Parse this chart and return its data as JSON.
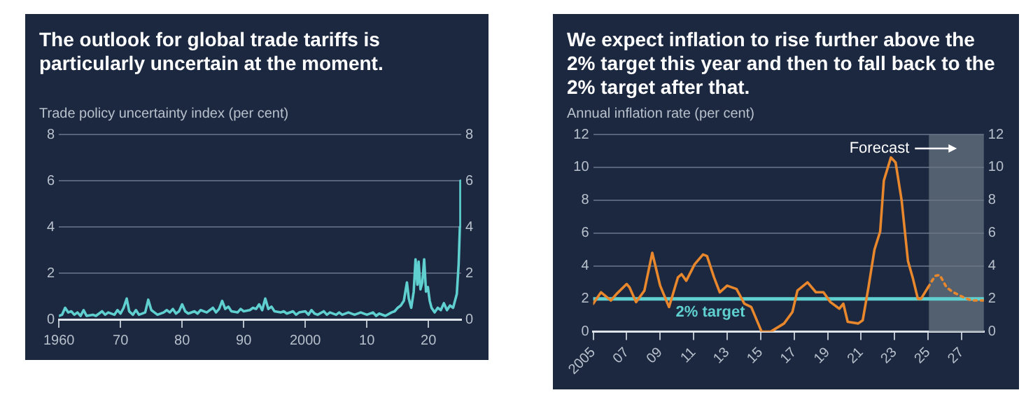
{
  "chart_data": [
    {
      "type": "line",
      "title": "The outlook for global trade tariffs is particularly uncertain at the moment.",
      "ylabel": "Trade policy uncertainty index (per cent)",
      "series": [
        {
          "color": "#5fd0cf",
          "x": [
            1960,
            1960.5,
            1961,
            1961.5,
            1962,
            1962.5,
            1963,
            1963.5,
            1964,
            1964.5,
            1965.5,
            1966,
            1967,
            1967.5,
            1968,
            1969,
            1969.5,
            1970,
            1970.5,
            1971,
            1971.4,
            1972,
            1972.5,
            1973,
            1974,
            1974.5,
            1975,
            1975.5,
            1976,
            1977,
            1977.5,
            1978,
            1978.5,
            1979,
            1979.5,
            1980,
            1980.5,
            1981,
            1982,
            1982.5,
            1983,
            1984,
            1985,
            1985.5,
            1986,
            1986.5,
            1987,
            1987.5,
            1988,
            1989,
            1989.5,
            1990,
            1991,
            1991.5,
            1992,
            1992.5,
            1993,
            1993.5,
            1994,
            1994.5,
            1995,
            1996,
            1996.5,
            1997,
            1998,
            1998.5,
            1999,
            2000,
            2000.5,
            2001,
            2001.5,
            2002,
            2003,
            2003.5,
            2004,
            2005,
            2005.5,
            2006,
            2007,
            2008,
            2009,
            2010,
            2011,
            2011.5,
            2012,
            2013,
            2014,
            2014.5,
            2015,
            2015.5,
            2016,
            2016.5,
            2016.8,
            2017.2,
            2017.6,
            2017.9,
            2018.2,
            2018.4,
            2018.7,
            2019,
            2019.3,
            2019.6,
            2019.9,
            2020.2,
            2020.5,
            2021,
            2021.5,
            2022,
            2022.5,
            2023,
            2023.5,
            2024,
            2024.3,
            2024.6,
            2024.9,
            2025.1,
            2025.2
          ],
          "values": [
            0.15,
            0.2,
            0.5,
            0.3,
            0.35,
            0.2,
            0.3,
            0.15,
            0.4,
            0.15,
            0.2,
            0.15,
            0.35,
            0.2,
            0.3,
            0.2,
            0.4,
            0.25,
            0.5,
            0.9,
            0.35,
            0.2,
            0.4,
            0.2,
            0.3,
            0.85,
            0.4,
            0.3,
            0.2,
            0.3,
            0.4,
            0.3,
            0.45,
            0.25,
            0.35,
            0.65,
            0.35,
            0.25,
            0.35,
            0.25,
            0.4,
            0.3,
            0.5,
            0.3,
            0.45,
            0.8,
            0.45,
            0.55,
            0.35,
            0.3,
            0.45,
            0.35,
            0.4,
            0.5,
            0.45,
            0.65,
            0.4,
            0.9,
            0.45,
            0.55,
            0.35,
            0.3,
            0.35,
            0.25,
            0.35,
            0.2,
            0.3,
            0.35,
            0.2,
            0.4,
            0.25,
            0.2,
            0.35,
            0.2,
            0.3,
            0.2,
            0.3,
            0.2,
            0.3,
            0.2,
            0.3,
            0.2,
            0.3,
            0.15,
            0.25,
            0.15,
            0.3,
            0.35,
            0.5,
            0.6,
            0.8,
            1.6,
            0.9,
            0.5,
            1.2,
            2.6,
            1.5,
            2.5,
            1.3,
            1.6,
            2.6,
            1.2,
            1.4,
            0.8,
            0.5,
            0.3,
            0.5,
            0.4,
            0.7,
            0.4,
            0.6,
            0.5,
            0.8,
            1.1,
            2.4,
            4,
            6.0
          ]
        }
      ],
      "xlim": [
        1960,
        2025.3
      ],
      "xticks": [
        {
          "value": 1960,
          "label": "1960"
        },
        {
          "value": 1970,
          "label": "70"
        },
        {
          "value": 1980,
          "label": "80"
        },
        {
          "value": 1990,
          "label": "90"
        },
        {
          "value": 2000,
          "label": "2000"
        },
        {
          "value": 2010,
          "label": "10"
        },
        {
          "value": 2020,
          "label": "20"
        }
      ],
      "ylim": [
        0,
        8
      ],
      "yticks": [
        0,
        2,
        4,
        6,
        8
      ],
      "y2lim": [
        0,
        8
      ],
      "y2ticks": [
        0,
        2,
        4,
        6,
        8
      ],
      "grid": "y"
    },
    {
      "type": "line",
      "title": "We expect inflation to rise further above the 2% target this year and then to fall back to the 2% target after that.",
      "ylabel": "Annual inflation rate (per cent)",
      "series": [
        {
          "color": "#e8872c",
          "line_style": "solid",
          "x": [
            2005.0,
            2005.47,
            2006.06,
            2006.4,
            2007.0,
            2007.17,
            2007.56,
            2008.06,
            2008.53,
            2009.0,
            2009.53,
            2010.06,
            2010.28,
            2010.56,
            2011.06,
            2011.56,
            2011.8,
            2012.22,
            2012.56,
            2013.0,
            2013.56,
            2014.03,
            2014.44,
            2015.06,
            2015.6,
            2016.4,
            2016.9,
            2017.2,
            2017.8,
            2018.3,
            2018.75,
            2019.17,
            2019.7,
            2019.94,
            2020.2,
            2020.83,
            2021.1,
            2021.44,
            2021.8,
            2022.14,
            2022.36,
            2022.78,
            2023.06,
            2023.42,
            2023.8,
            2024.08,
            2024.39,
            2024.58,
            2025.0
          ],
          "values": [
            1.7,
            2.4,
            1.9,
            2.3,
            2.9,
            2.7,
            1.8,
            2.5,
            4.8,
            2.8,
            1.5,
            3.3,
            3.5,
            3.1,
            4.1,
            4.7,
            4.6,
            3.3,
            2.4,
            2.8,
            2.6,
            1.7,
            1.5,
            0,
            0,
            0.5,
            1.2,
            2.5,
            3.0,
            2.4,
            2.4,
            1.8,
            1.4,
            1.7,
            0.6,
            0.5,
            0.7,
            2.7,
            5.0,
            6.1,
            9.2,
            10.6,
            10.3,
            8.0,
            4.3,
            3.3,
            2.0,
            2.0,
            2.7
          ]
        },
        {
          "color": "#e8872c",
          "line_style": "dotted",
          "x": [
            2025.0,
            2025.42,
            2025.7,
            2026.1,
            2026.5,
            2027.1,
            2027.6,
            2028.3
          ],
          "values": [
            2.7,
            3.4,
            3.45,
            2.7,
            2.4,
            2.1,
            1.9,
            1.9
          ]
        }
      ],
      "xlim": [
        2005,
        2028.33
      ],
      "xticks": [
        {
          "value": 2005,
          "label": "2005"
        },
        {
          "value": 2007,
          "label": "07"
        },
        {
          "value": 2009,
          "label": "09"
        },
        {
          "value": 2011,
          "label": "11"
        },
        {
          "value": 2013,
          "label": "13"
        },
        {
          "value": 2015,
          "label": "15"
        },
        {
          "value": 2017,
          "label": "17"
        },
        {
          "value": 2019,
          "label": "19"
        },
        {
          "value": 2021,
          "label": "21"
        },
        {
          "value": 2023,
          "label": "23"
        },
        {
          "value": 2025,
          "label": "25"
        },
        {
          "value": 2027,
          "label": "27"
        }
      ],
      "ylim": [
        0,
        12
      ],
      "yticks": [
        0,
        2,
        4,
        6,
        8,
        10,
        12
      ],
      "y2lim": [
        0,
        12
      ],
      "y2ticks": [
        0,
        2,
        4,
        6,
        8,
        10,
        12
      ],
      "grid": "y",
      "ref_lines": [
        {
          "axis": "y",
          "value": 2,
          "label": "2% target",
          "color": "#5fd0cf"
        }
      ],
      "bands": [
        {
          "axis": "x",
          "from": 2025.05,
          "to": 2028.33,
          "label": "Forecast",
          "color": "#6b7785"
        }
      ]
    }
  ]
}
